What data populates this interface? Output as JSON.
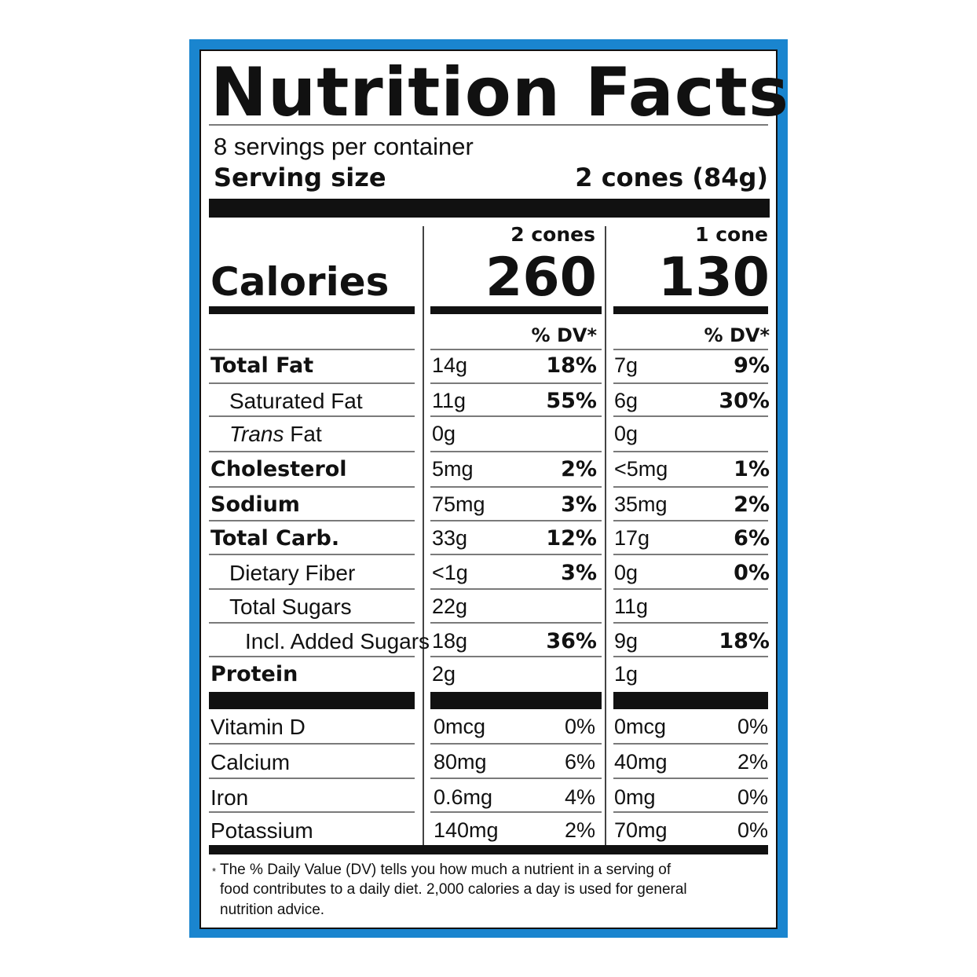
{
  "label": {
    "title": "Nutrition Facts",
    "servings_per_container": "8 servings per container",
    "serving_size_label": "Serving size",
    "serving_size_value": "2 cones (84g)",
    "calories_label": "Calories",
    "columns": [
      {
        "header": "2 cones",
        "calories": "260",
        "dv_header": "% DV*"
      },
      {
        "header": "1 cone",
        "calories": "130",
        "dv_header": "% DV*"
      }
    ],
    "nutrients": [
      {
        "name": "Total Fat",
        "col1_amount": "14g",
        "col1_dv": "18%",
        "col2_amount": "7g",
        "col2_dv": "9%"
      },
      {
        "name": "Saturated Fat",
        "col1_amount": "11g",
        "col1_dv": "55%",
        "col2_amount": "6g",
        "col2_dv": "30%"
      },
      {
        "name_italic": "Trans",
        "name_rest": " Fat",
        "col1_amount": "0g",
        "col2_amount": "0g"
      },
      {
        "name": "Cholesterol",
        "col1_amount": "5mg",
        "col1_dv": "2%",
        "col2_amount": "<5mg",
        "col2_dv": "1%"
      },
      {
        "name": "Sodium",
        "col1_amount": "75mg",
        "col1_dv": "3%",
        "col2_amount": "35mg",
        "col2_dv": "2%"
      },
      {
        "name": "Total Carb.",
        "col1_amount": "33g",
        "col1_dv": "12%",
        "col2_amount": "17g",
        "col2_dv": "6%"
      },
      {
        "name": "Dietary Fiber",
        "col1_amount": "<1g",
        "col1_dv": "3%",
        "col2_amount": "0g",
        "col2_dv": "0%"
      },
      {
        "name": "Total Sugars",
        "col1_amount": "22g",
        "col2_amount": "11g"
      },
      {
        "name": "Incl. Added Sugars",
        "col1_amount": "18g",
        "col1_dv": "36%",
        "col2_amount": "9g",
        "col2_dv": "18%"
      },
      {
        "name": "Protein",
        "col1_amount": "2g",
        "col2_amount": "1g"
      }
    ],
    "vitamins": [
      {
        "name": "Vitamin D",
        "col1_amount": "0mcg",
        "col1_dv": "0%",
        "col2_amount": "0mcg",
        "col2_dv": "0%"
      },
      {
        "name": "Calcium",
        "col1_amount": "80mg",
        "col1_dv": "6%",
        "col2_amount": "40mg",
        "col2_dv": "2%"
      },
      {
        "name": "Iron",
        "col1_amount": "0.6mg",
        "col1_dv": "4%",
        "col2_amount": "0mg",
        "col2_dv": "0%"
      },
      {
        "name": "Potassium",
        "col1_amount": "140mg",
        "col1_dv": "2%",
        "col2_amount": "70mg",
        "col2_dv": "0%"
      }
    ],
    "footnote_mark": "*",
    "footnote_lines": [
      "The % Daily Value (DV) tells you how much a nutrient in a serving of",
      "food contributes to a daily diet. 2,000 calories a day is used for general",
      "nutrition advice."
    ],
    "colors": {
      "frame": "#1a85cf",
      "ink": "#111111",
      "rule": "#7a7a7a"
    }
  }
}
